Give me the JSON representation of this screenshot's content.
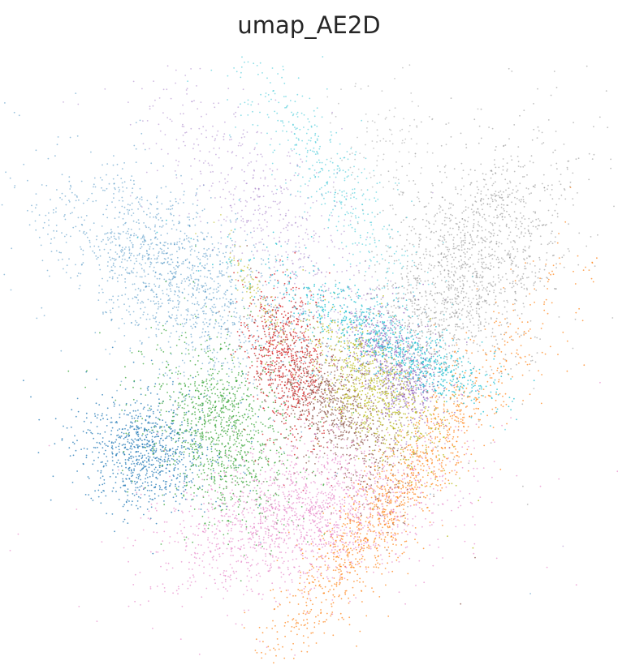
{
  "chart_data": {
    "type": "scatter",
    "title": "umap_AE2D",
    "xlabel": "",
    "ylabel": "",
    "axes_visible": false,
    "grid": false,
    "legend": "none",
    "xlim": [
      0,
      10
    ],
    "ylim": [
      0,
      10
    ],
    "series": [
      {
        "color": "#1f77b4",
        "clusters": [
          {
            "cx": 2.5,
            "cy": 6.3,
            "sx": 0.62,
            "sy": 1.35,
            "angle": 55,
            "n": 1500,
            "alpha": 0.45
          },
          {
            "cx": 1.95,
            "cy": 3.2,
            "sx": 0.55,
            "sy": 0.48,
            "angle": 0,
            "n": 900,
            "alpha": 0.75
          }
        ]
      },
      {
        "color": "#ff7f0e",
        "clusters": [
          {
            "cx": 6.55,
            "cy": 2.4,
            "sx": 0.33,
            "sy": 1.95,
            "angle": -38,
            "n": 1400,
            "alpha": 0.7
          }
        ]
      },
      {
        "color": "#2ca02c",
        "clusters": [
          {
            "cx": 3.35,
            "cy": 3.55,
            "sx": 0.55,
            "sy": 0.8,
            "angle": 25,
            "n": 1100,
            "alpha": 0.7
          }
        ]
      },
      {
        "color": "#d62728",
        "clusters": [
          {
            "cx": 4.55,
            "cy": 4.8,
            "sx": 0.32,
            "sy": 0.65,
            "angle": 15,
            "n": 700,
            "alpha": 0.8
          }
        ]
      },
      {
        "color": "#9467bd",
        "clusters": [
          {
            "cx": 4.2,
            "cy": 7.45,
            "sx": 0.5,
            "sy": 1.55,
            "angle": 42,
            "n": 600,
            "alpha": 0.45
          },
          {
            "cx": 6.25,
            "cy": 5.15,
            "sx": 0.3,
            "sy": 0.35,
            "angle": 0,
            "n": 280,
            "alpha": 0.75
          },
          {
            "cx": 6.75,
            "cy": 4.4,
            "sx": 0.32,
            "sy": 0.38,
            "angle": 0,
            "n": 400,
            "alpha": 0.75
          }
        ]
      },
      {
        "color": "#8c564b",
        "clusters": [
          {
            "cx": 5.45,
            "cy": 3.95,
            "sx": 0.35,
            "sy": 0.82,
            "angle": 38,
            "n": 850,
            "alpha": 0.75
          }
        ]
      },
      {
        "color": "#e377c2",
        "clusters": [
          {
            "cx": 4.9,
            "cy": 2.05,
            "sx": 1.25,
            "sy": 0.58,
            "angle": 15,
            "n": 1700,
            "alpha": 0.6
          }
        ]
      },
      {
        "color": "#7f7f7f",
        "clusters": [
          {
            "cx": 7.8,
            "cy": 6.35,
            "sx": 0.68,
            "sy": 1.25,
            "angle": -35,
            "n": 1700,
            "alpha": 0.5
          },
          {
            "cx": 6.4,
            "cy": 8.7,
            "sx": 0.45,
            "sy": 0.75,
            "angle": 0,
            "n": 140,
            "alpha": 0.4
          }
        ]
      },
      {
        "color": "#bcbd22",
        "clusters": [
          {
            "cx": 6.15,
            "cy": 4.3,
            "sx": 0.38,
            "sy": 0.75,
            "angle": 38,
            "n": 750,
            "alpha": 0.8
          },
          {
            "cx": 3.95,
            "cy": 6.05,
            "sx": 0.1,
            "sy": 0.55,
            "angle": 30,
            "n": 110,
            "alpha": 0.6
          }
        ]
      },
      {
        "color": "#17becf",
        "clusters": [
          {
            "cx": 5.35,
            "cy": 8.1,
            "sx": 0.3,
            "sy": 1.45,
            "angle": 35,
            "n": 450,
            "alpha": 0.5
          },
          {
            "cx": 6.05,
            "cy": 5.4,
            "sx": 0.28,
            "sy": 1.1,
            "angle": 62,
            "n": 600,
            "alpha": 0.75
          },
          {
            "cx": 7.15,
            "cy": 4.7,
            "sx": 0.2,
            "sy": 0.6,
            "angle": 70,
            "n": 280,
            "alpha": 0.75
          }
        ]
      }
    ]
  }
}
